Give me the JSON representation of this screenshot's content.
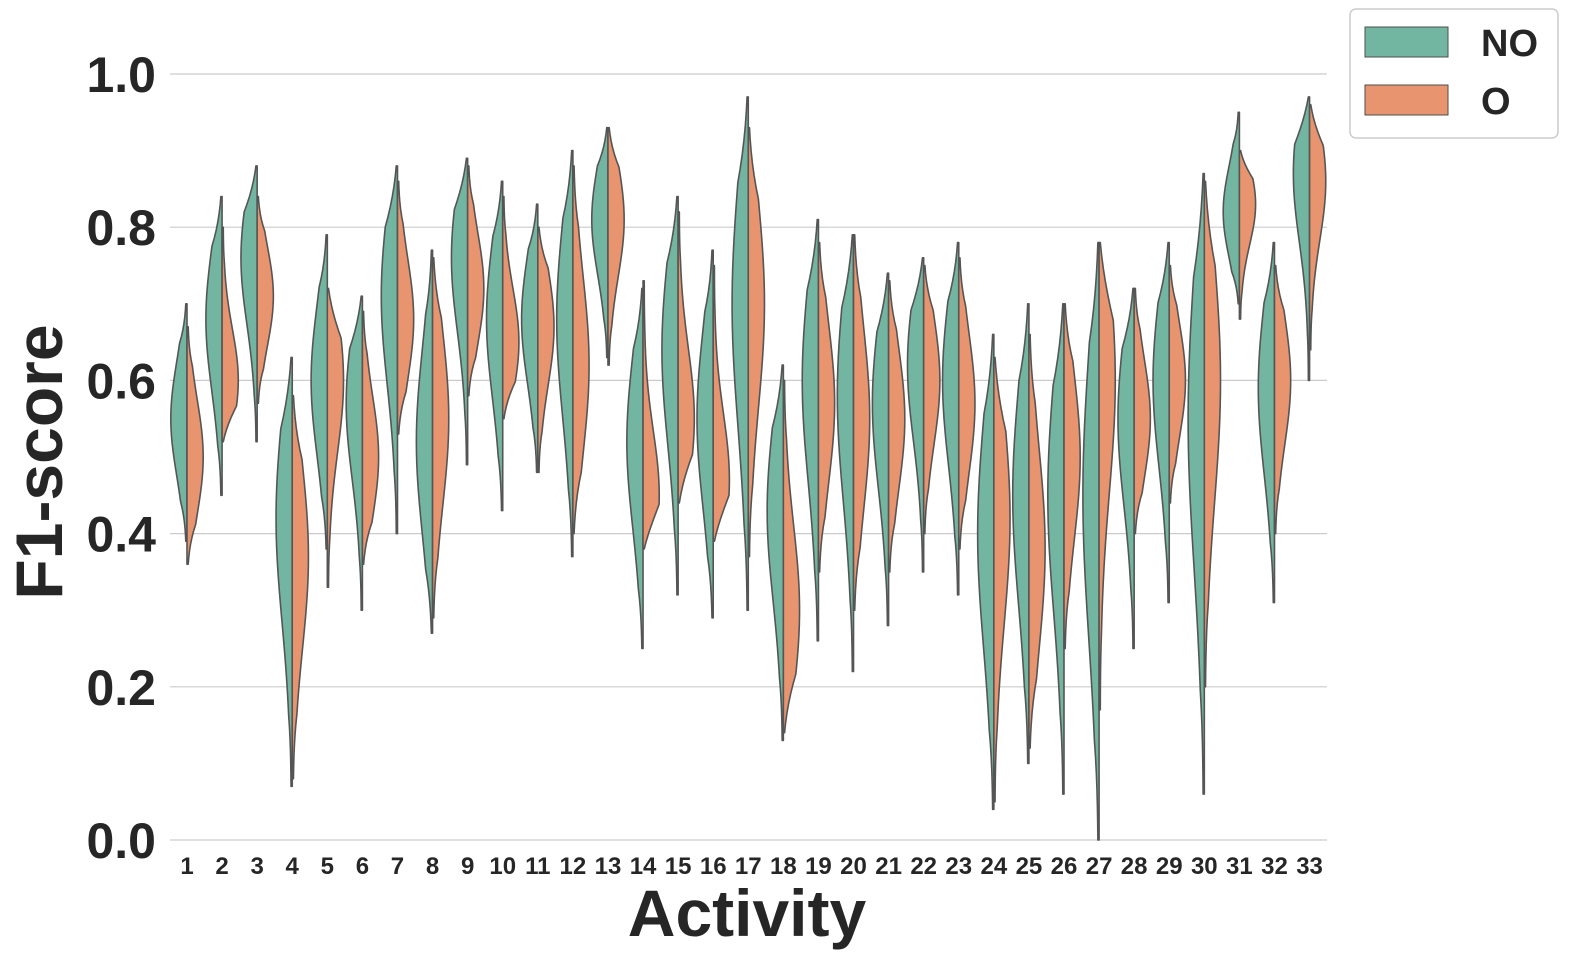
{
  "chart_data": {
    "type": "violin",
    "split": true,
    "xlabel": "Activity",
    "ylabel": "F1-score",
    "ylim": [
      0,
      1.0
    ],
    "yticks": [
      "0.0",
      "0.2",
      "0.4",
      "0.6",
      "0.8",
      "1.0"
    ],
    "grid": true,
    "legend_position": "top-right",
    "categories": [
      "1",
      "2",
      "3",
      "4",
      "5",
      "6",
      "7",
      "8",
      "9",
      "10",
      "11",
      "12",
      "13",
      "14",
      "15",
      "16",
      "17",
      "18",
      "19",
      "20",
      "21",
      "22",
      "23",
      "24",
      "25",
      "26",
      "27",
      "28",
      "29",
      "30",
      "31",
      "32",
      "33"
    ],
    "series": [
      {
        "name": "NO",
        "color": "#72b6a1",
        "side": "left",
        "min": [
          0.39,
          0.45,
          0.52,
          0.07,
          0.38,
          0.3,
          0.4,
          0.27,
          0.49,
          0.43,
          0.48,
          0.37,
          0.63,
          0.25,
          0.32,
          0.29,
          0.3,
          0.13,
          0.26,
          0.22,
          0.28,
          0.35,
          0.32,
          0.04,
          0.1,
          0.06,
          0.0,
          0.25,
          0.31,
          0.06,
          0.7,
          0.31,
          0.6
        ],
        "max": [
          0.7,
          0.84,
          0.88,
          0.63,
          0.79,
          0.71,
          0.88,
          0.77,
          0.89,
          0.86,
          0.83,
          0.9,
          0.93,
          0.72,
          0.84,
          0.77,
          0.97,
          0.62,
          0.81,
          0.79,
          0.74,
          0.76,
          0.78,
          0.66,
          0.7,
          0.7,
          0.78,
          0.72,
          0.78,
          0.87,
          0.95,
          0.78,
          0.97
        ],
        "center": [
          0.55,
          0.68,
          0.76,
          0.42,
          0.6,
          0.57,
          0.71,
          0.52,
          0.76,
          0.68,
          0.68,
          0.68,
          0.81,
          0.52,
          0.64,
          0.55,
          0.7,
          0.43,
          0.6,
          0.58,
          0.57,
          0.62,
          0.6,
          0.4,
          0.45,
          0.45,
          0.45,
          0.55,
          0.6,
          0.55,
          0.82,
          0.59,
          0.87
        ]
      },
      {
        "name": "O",
        "color": "#e8956f",
        "side": "right",
        "min": [
          0.36,
          0.52,
          0.57,
          0.08,
          0.33,
          0.36,
          0.53,
          0.29,
          0.58,
          0.55,
          0.48,
          0.4,
          0.62,
          0.38,
          0.44,
          0.39,
          0.37,
          0.14,
          0.35,
          0.3,
          0.35,
          0.4,
          0.38,
          0.05,
          0.12,
          0.25,
          0.17,
          0.4,
          0.44,
          0.2,
          0.68,
          0.4,
          0.64
        ],
        "max": [
          0.67,
          0.8,
          0.84,
          0.58,
          0.72,
          0.69,
          0.86,
          0.76,
          0.88,
          0.84,
          0.8,
          0.88,
          0.93,
          0.73,
          0.82,
          0.75,
          0.93,
          0.6,
          0.78,
          0.79,
          0.73,
          0.75,
          0.76,
          0.63,
          0.66,
          0.7,
          0.78,
          0.72,
          0.75,
          0.86,
          0.9,
          0.75,
          0.96
        ],
        "center": [
          0.5,
          0.6,
          0.71,
          0.37,
          0.6,
          0.5,
          0.68,
          0.55,
          0.72,
          0.65,
          0.67,
          0.62,
          0.81,
          0.45,
          0.55,
          0.47,
          0.7,
          0.3,
          0.57,
          0.55,
          0.55,
          0.6,
          0.57,
          0.42,
          0.38,
          0.5,
          0.6,
          0.55,
          0.6,
          0.6,
          0.83,
          0.6,
          0.86
        ]
      }
    ]
  }
}
